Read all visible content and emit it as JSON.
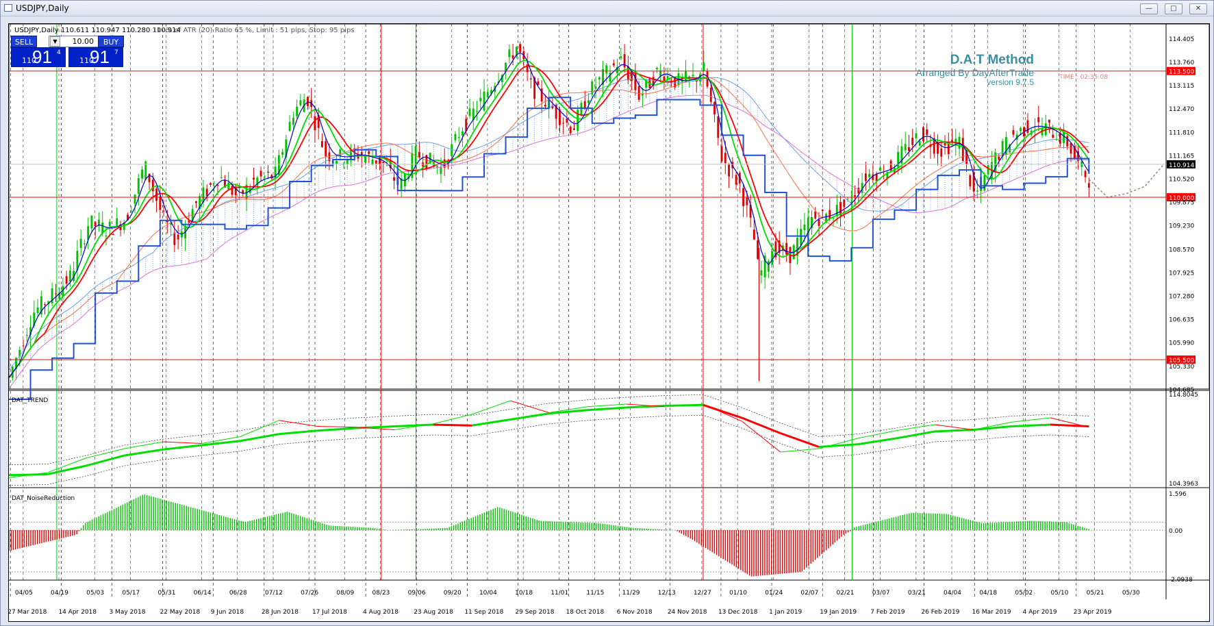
{
  "window": {
    "title": "USDJPY,Daily",
    "minimize": "—",
    "maximize": "□",
    "close": "✕"
  },
  "chart_info": {
    "symbol_line": "USDJPY,Daily  110.611 110.947 110.280 110.914",
    "atr_text": "100% of ATR (20)  Ratio  65 %, Limit : 51 pips, Stop:  95 pips",
    "time_text": "TIME : 02:35:08"
  },
  "trade_panel": {
    "sell_label": "SELL",
    "buy_label": "BUY",
    "lot_value": "10.00",
    "sell_prefix": "110",
    "sell_big": "91",
    "sell_sup": "4",
    "buy_prefix": "110",
    "buy_big": "91",
    "buy_sup": "7"
  },
  "branding": {
    "name": "D.A.T Method",
    "arranged": "Arranged By DayAfterTrade",
    "version": "version 9.7.5"
  },
  "colors": {
    "candle_green": "#00c000",
    "candle_red": "#e00000",
    "ma_red": "#ff0000",
    "ma_green": "#00dd00",
    "ma_blue": "#0000cc",
    "kijun_blue": "#1e50d8",
    "cloud_blue": "#6aa0e8",
    "cloud_pink": "#e070d8",
    "level_red": "#ff0000",
    "vline_green": "#00c800",
    "axis_label_bg": "#ff0000",
    "current_bg": "#000000"
  },
  "chart_data": [
    {
      "type": "candlestick",
      "panel": "main",
      "title": "USDJPY,Daily",
      "ylim": [
        104.685,
        114.8045
      ],
      "y_ticks": [
        "114.405",
        "113.760",
        "113.115",
        "112.470",
        "111.810",
        "111.165",
        "110.520",
        "109.875",
        "109.230",
        "108.570",
        "107.925",
        "107.280",
        "106.635",
        "105.990",
        "105.330",
        "104.685"
      ],
      "levels": [
        {
          "value": 113.5,
          "label": "113.500"
        },
        {
          "value": 110.0,
          "label": "110.000"
        },
        {
          "value": 105.5,
          "label": "105.500"
        }
      ],
      "current_price": {
        "value": 110.914,
        "label": "110.914"
      },
      "close_path": [
        [
          "2018-03-27",
          105.0
        ],
        [
          "2018-04-05",
          106.8
        ],
        [
          "2018-04-14",
          107.4
        ],
        [
          "2018-04-19",
          107.8
        ],
        [
          "2018-04-26",
          109.3
        ],
        [
          "2018-05-03",
          109.1
        ],
        [
          "2018-05-10",
          109.4
        ],
        [
          "2018-05-17",
          110.9
        ],
        [
          "2018-05-24",
          109.4
        ],
        [
          "2018-05-29",
          108.8
        ],
        [
          "2018-06-05",
          109.8
        ],
        [
          "2018-06-14",
          110.6
        ],
        [
          "2018-06-21",
          110.0
        ],
        [
          "2018-06-28",
          110.5
        ],
        [
          "2018-07-05",
          110.6
        ],
        [
          "2018-07-12",
          112.4
        ],
        [
          "2018-07-17",
          112.8
        ],
        [
          "2018-07-24",
          111.2
        ],
        [
          "2018-07-30",
          111.1
        ],
        [
          "2018-08-05",
          111.2
        ],
        [
          "2018-08-14",
          111.0
        ],
        [
          "2018-08-21",
          110.3
        ],
        [
          "2018-08-27",
          111.2
        ],
        [
          "2018-09-06",
          110.8
        ],
        [
          "2018-09-13",
          111.9
        ],
        [
          "2018-09-20",
          112.6
        ],
        [
          "2018-09-27",
          113.4
        ],
        [
          "2018-10-04",
          114.2
        ],
        [
          "2018-10-09",
          113.1
        ],
        [
          "2018-10-18",
          112.4
        ],
        [
          "2018-10-25",
          111.9
        ],
        [
          "2018-10-31",
          112.9
        ],
        [
          "2018-11-06",
          113.4
        ],
        [
          "2018-11-12",
          113.8
        ],
        [
          "2018-11-19",
          112.8
        ],
        [
          "2018-11-26",
          113.5
        ],
        [
          "2018-12-03",
          113.2
        ],
        [
          "2018-12-10",
          113.3
        ],
        [
          "2018-12-13",
          113.6
        ],
        [
          "2018-12-20",
          111.1
        ],
        [
          "2018-12-27",
          110.3
        ],
        [
          "2019-01-01",
          108.9
        ],
        [
          "2019-01-03",
          107.8
        ],
        [
          "2019-01-08",
          108.6
        ],
        [
          "2019-01-15",
          108.4
        ],
        [
          "2019-01-22",
          109.4
        ],
        [
          "2019-01-29",
          109.5
        ],
        [
          "2019-02-05",
          109.8
        ],
        [
          "2019-02-12",
          110.6
        ],
        [
          "2019-02-21",
          110.8
        ],
        [
          "2019-02-28",
          111.4
        ],
        [
          "2019-03-05",
          111.8
        ],
        [
          "2019-03-12",
          111.3
        ],
        [
          "2019-03-19",
          111.6
        ],
        [
          "2019-03-25",
          110.0
        ],
        [
          "2019-04-01",
          111.0
        ],
        [
          "2019-04-08",
          111.7
        ],
        [
          "2019-04-15",
          112.0
        ],
        [
          "2019-04-22",
          111.9
        ],
        [
          "2019-04-29",
          111.5
        ],
        [
          "2019-05-03",
          110.9
        ],
        [
          "2019-05-07",
          110.5
        ]
      ],
      "projection_path": [
        [
          "2019-05-07",
          110.5
        ],
        [
          "2019-05-14",
          110.0
        ],
        [
          "2019-05-21",
          110.1
        ],
        [
          "2019-05-28",
          110.3
        ],
        [
          "2019-06-04",
          110.9
        ]
      ],
      "x_ticks_top": [
        "04/05",
        "04/19",
        "05/03",
        "05/17",
        "05/31",
        "06/14",
        "06/28",
        "07/12",
        "07/26",
        "08/09",
        "08/23",
        "09/06",
        "09/20",
        "10/04",
        "10/18",
        "11/01",
        "11/15",
        "11/29",
        "12/13",
        "12/27",
        "01/10",
        "01/24",
        "02/07",
        "02/21",
        "03/07",
        "03/21",
        "04/04",
        "04/18",
        "05/02",
        "05/10",
        "05/21",
        "05/30"
      ],
      "x_ticks_bottom": [
        "27 Mar 2018",
        "14 Apr 2018",
        "3 May 2018",
        "22 May 2018",
        "9 Jun 2018",
        "28 Jun 2018",
        "17 Jul 2018",
        "4 Aug 2018",
        "23 Aug 2018",
        "11 Sep 2018",
        "29 Sep 2018",
        "18 Oct 2018",
        "6 Nov 2018",
        "24 Nov 2018",
        "13 Dec 2018",
        "1 Jan 2019",
        "19 Jan 2019",
        "7 Feb 2019",
        "26 Feb 2019",
        "16 Mar 2019",
        "4 Apr 2019",
        "23 Apr 2019"
      ]
    },
    {
      "type": "line",
      "panel": "DAT_TREND",
      "title": "DAT_TREND",
      "y_ticks": [
        "114.8045",
        "104.3963"
      ],
      "series": [
        {
          "points": [
            105.3,
            105.4,
            106.4,
            107.6,
            108.3,
            108.8,
            109.3,
            110.1,
            110.5,
            110.8,
            111.0,
            111.2,
            111.1,
            111.8,
            112.5,
            112.9,
            113.2,
            113.4,
            113.5,
            112.0,
            110.2,
            108.6,
            108.9,
            109.6,
            110.4,
            110.6,
            111.0,
            111.2,
            111.0
          ]
        },
        {
          "points": [
            105.0,
            105.6,
            107.3,
            108.4,
            109.2,
            109.0,
            109.8,
            111.7,
            111.0,
            110.9,
            110.6,
            111.3,
            112.4,
            114.0,
            112.6,
            113.3,
            113.6,
            113.3,
            113.6,
            111.6,
            108.0,
            108.4,
            109.6,
            110.5,
            111.2,
            110.6,
            111.5,
            112.0,
            110.9
          ]
        }
      ]
    },
    {
      "type": "bar",
      "panel": "DAT_NoiseReduction",
      "title": "DAT_NoiseReduction",
      "y_ticks": [
        "1.596",
        "0.00",
        "-2.0938"
      ],
      "ylim": [
        -2.0938,
        1.596
      ],
      "segments": [
        [
          0.0,
          -0.9
        ],
        [
          0.08,
          -0.2
        ],
        [
          0.09,
          0.3
        ],
        [
          0.16,
          1.55
        ],
        [
          0.28,
          0.35
        ],
        [
          0.33,
          0.8
        ],
        [
          0.38,
          0.2
        ],
        [
          0.43,
          0.1
        ],
        [
          0.45,
          0.0
        ],
        [
          0.49,
          0.05
        ],
        [
          0.52,
          0.1
        ],
        [
          0.58,
          1.0
        ],
        [
          0.63,
          0.4
        ],
        [
          0.7,
          0.3
        ],
        [
          0.74,
          0.1
        ],
        [
          0.79,
          0.0
        ],
        [
          0.81,
          -0.4
        ],
        [
          0.88,
          -2.0
        ],
        [
          0.94,
          -1.8
        ],
        [
          0.99,
          -0.2
        ],
        [
          1.0,
          0.0
        ]
      ],
      "segments_2019": [
        [
          0.0,
          0.1
        ],
        [
          0.25,
          0.75
        ],
        [
          0.4,
          0.7
        ],
        [
          0.55,
          0.3
        ],
        [
          0.75,
          0.4
        ],
        [
          0.9,
          0.35
        ],
        [
          1.0,
          0.05
        ]
      ]
    }
  ]
}
